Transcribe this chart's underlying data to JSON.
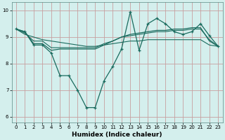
{
  "bg_color": "#d4efed",
  "grid_color": "#c8a0a0",
  "line_color": "#1a6b5e",
  "xlabel": "Humidex (Indice chaleur)",
  "xlim": [
    -0.5,
    23.5
  ],
  "ylim": [
    5.8,
    10.3
  ],
  "yticks": [
    6,
    7,
    8,
    9,
    10
  ],
  "xticks": [
    0,
    1,
    2,
    3,
    4,
    5,
    6,
    7,
    8,
    9,
    10,
    11,
    12,
    13,
    14,
    15,
    16,
    17,
    18,
    19,
    20,
    21,
    22,
    23
  ],
  "line1_x": [
    0,
    1,
    2,
    3,
    4,
    5,
    6,
    7,
    8,
    9,
    10,
    11,
    12,
    13,
    14,
    15,
    16,
    17,
    18,
    19,
    20,
    21,
    22,
    23
  ],
  "line1_y": [
    9.3,
    9.2,
    8.7,
    8.7,
    8.4,
    7.55,
    7.55,
    7.0,
    6.35,
    6.35,
    7.35,
    7.9,
    8.55,
    9.95,
    8.5,
    9.5,
    9.7,
    9.5,
    9.2,
    9.1,
    9.2,
    9.5,
    9.05,
    8.65
  ],
  "line2_x": [
    0,
    1,
    2,
    3,
    4,
    5,
    6,
    7,
    8,
    9,
    10,
    11,
    12,
    13,
    14,
    15,
    16,
    17,
    18,
    19,
    20,
    21,
    22,
    23
  ],
  "line2_y": [
    9.3,
    9.2,
    8.75,
    8.75,
    8.5,
    8.55,
    8.55,
    8.55,
    8.55,
    8.55,
    8.7,
    8.85,
    9.0,
    9.1,
    9.15,
    9.2,
    9.25,
    9.25,
    9.3,
    9.3,
    9.35,
    9.35,
    8.85,
    8.65
  ],
  "line3_x": [
    0,
    1,
    2,
    3,
    4,
    5,
    6,
    7,
    8,
    9,
    10,
    11,
    12,
    13,
    14,
    15,
    16,
    17,
    18,
    19,
    20,
    21,
    22,
    23
  ],
  "line3_y": [
    9.3,
    9.15,
    8.85,
    8.85,
    8.6,
    8.6,
    8.6,
    8.6,
    8.6,
    8.6,
    8.75,
    8.85,
    9.0,
    9.05,
    9.1,
    9.15,
    9.2,
    9.2,
    9.25,
    9.25,
    9.3,
    9.3,
    8.9,
    8.65
  ],
  "line4_x": [
    0,
    1,
    2,
    3,
    4,
    5,
    6,
    7,
    8,
    9,
    10,
    11,
    12,
    13,
    14,
    15,
    16,
    17,
    18,
    19,
    20,
    21,
    22,
    23
  ],
  "line4_y": [
    9.3,
    9.1,
    9.0,
    8.9,
    8.85,
    8.8,
    8.75,
    8.7,
    8.65,
    8.65,
    8.7,
    8.75,
    8.8,
    8.85,
    8.85,
    8.9,
    8.9,
    8.9,
    8.9,
    8.9,
    8.9,
    8.9,
    8.7,
    8.65
  ]
}
